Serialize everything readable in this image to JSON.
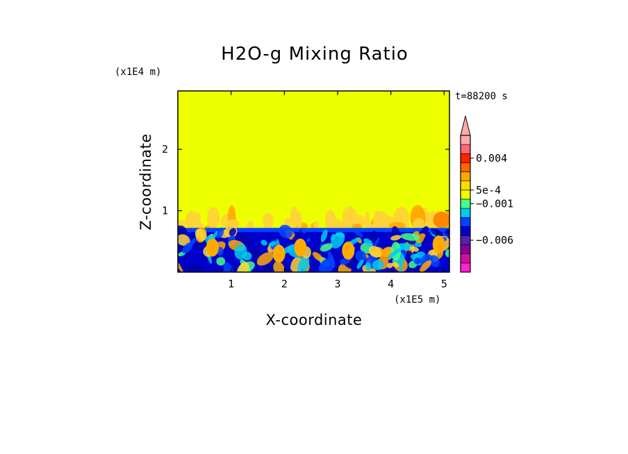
{
  "chart_data": {
    "type": "heatmap",
    "title": "H2O-g Mixing Ratio",
    "xlabel": "X-coordinate",
    "ylabel": "Z-coordinate",
    "x_scale_label": "(x1E5 m)",
    "y_scale_label": "(x1E4 m)",
    "time_label": "t=88200 s",
    "xlim": [
      0,
      5.1
    ],
    "ylim": [
      0,
      2.95
    ],
    "x_ticks": [
      "1",
      "2",
      "3",
      "4",
      "5"
    ],
    "x_tick_values": [
      1,
      2,
      3,
      4,
      5
    ],
    "y_ticks": [
      "1",
      "2"
    ],
    "y_tick_values": [
      1,
      2
    ],
    "fields": {
      "background": {
        "z_range": [
          1.05,
          2.95
        ],
        "value_level": "5e-4..0.001",
        "color": "#eeff00"
      },
      "plume_layer": {
        "z_range": [
          0.72,
          1.05
        ],
        "color": "#ffd23a"
      },
      "boundary_layer": {
        "z_range": [
          0.0,
          0.72
        ],
        "dominant_color": "#0000cc"
      }
    },
    "colorbar": {
      "colors": [
        "#ff22cc",
        "#cc1199",
        "#880099",
        "#5522aa",
        "#0000cc",
        "#0044ff",
        "#00ccee",
        "#44ff88",
        "#eeff00",
        "#ffdd00",
        "#ffaa00",
        "#ff6600",
        "#ff2200",
        "#ff6677",
        "#ffaaaa"
      ],
      "extend_top_color": "#ffaaaa",
      "tick_labels": [
        "0.004",
        "5e-4",
        "−0.001",
        "−0.006"
      ],
      "tick_level_index": [
        12.5,
        9,
        7.5,
        3.5
      ]
    }
  }
}
